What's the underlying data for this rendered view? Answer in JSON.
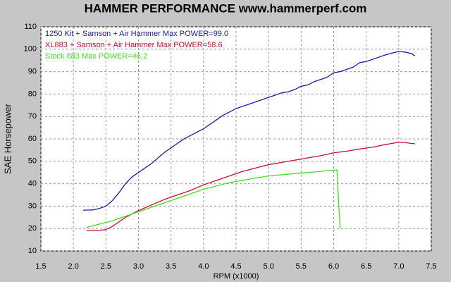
{
  "chart_data": {
    "type": "line",
    "title": "HAMMER PERFORMANCE www.hammerperf.com",
    "xlabel": "RPM (x1000)",
    "ylabel": "SAE Horsepower",
    "xlim": [
      1.5,
      7.5
    ],
    "ylim": [
      10,
      110
    ],
    "xticks": [
      1.5,
      {
        "value": 2,
        "label": "2.0"
      },
      2.5,
      {
        "value": 3,
        "label": "3.0"
      },
      3.5,
      {
        "value": 4,
        "label": "4.0"
      },
      4.5,
      {
        "value": 5,
        "label": "5.0"
      },
      5.5,
      {
        "value": 6,
        "label": "6.0"
      },
      6.5,
      {
        "value": 7,
        "label": "7.0"
      },
      7.5
    ],
    "yticks": [
      10,
      20,
      30,
      40,
      50,
      60,
      70,
      80,
      90,
      100,
      110
    ],
    "grid": true,
    "legend": "upper left",
    "series": [
      {
        "name": "1250 Kit + Samson + Air Hammer  Max POWER=99.0",
        "color": "#1c1ca0",
        "x": [
          2.15,
          2.3,
          2.4,
          2.5,
          2.6,
          2.7,
          2.8,
          2.9,
          3.0,
          3.1,
          3.2,
          3.3,
          3.4,
          3.5,
          3.6,
          3.7,
          3.8,
          3.9,
          4.0,
          4.1,
          4.2,
          4.3,
          4.4,
          4.5,
          4.6,
          4.7,
          4.8,
          4.9,
          5.0,
          5.1,
          5.2,
          5.3,
          5.4,
          5.5,
          5.6,
          5.7,
          5.8,
          5.9,
          6.0,
          6.1,
          6.2,
          6.3,
          6.4,
          6.5,
          6.6,
          6.7,
          6.8,
          6.9,
          7.0,
          7.1,
          7.2,
          7.25
        ],
        "values": [
          28.2,
          28.3,
          29,
          30,
          32.5,
          36,
          40,
          43,
          45,
          47,
          49,
          51.5,
          54,
          56,
          58,
          60,
          61.5,
          63,
          64.5,
          66.5,
          68.5,
          70.5,
          72,
          73.5,
          74.5,
          75.5,
          76.5,
          77.5,
          78.5,
          79.5,
          80.5,
          81,
          82,
          83.5,
          84,
          85.5,
          86.5,
          87.5,
          89.5,
          90,
          91,
          92,
          94,
          94.5,
          95.5,
          96.5,
          97.5,
          98.3,
          99,
          98.7,
          98,
          97
        ]
      },
      {
        "name": "XL883 + Samson + Air Hammer  Max POWER=58.6",
        "color": "#c8102e",
        "x": [
          2.2,
          2.4,
          2.5,
          2.6,
          2.7,
          2.8,
          3.0,
          3.2,
          3.4,
          3.6,
          3.8,
          4.0,
          4.2,
          4.4,
          4.6,
          4.8,
          5.0,
          5.2,
          5.4,
          5.6,
          5.8,
          6.0,
          6.2,
          6.4,
          6.6,
          6.8,
          7.0,
          7.1,
          7.25
        ],
        "values": [
          19,
          19.2,
          19.5,
          21,
          23,
          25,
          28,
          30.5,
          33,
          35,
          37,
          39.5,
          41.5,
          43.5,
          45.5,
          47,
          48.5,
          49.5,
          50.5,
          51.5,
          52.5,
          53.8,
          54.5,
          55.5,
          56.3,
          57.5,
          58.5,
          58.3,
          57.8
        ]
      },
      {
        "name": "Stock 883  Max POWER=46.2",
        "color": "#44dd22",
        "x": [
          2.2,
          2.4,
          2.6,
          2.8,
          3.0,
          3.2,
          3.4,
          3.6,
          3.8,
          4.0,
          4.2,
          4.4,
          4.6,
          4.8,
          5.0,
          5.2,
          5.4,
          5.6,
          5.8,
          5.9,
          6.0,
          6.05,
          6.08,
          6.1
        ],
        "values": [
          20.5,
          22,
          23.5,
          25.5,
          27.5,
          29.5,
          31.5,
          33.5,
          35.5,
          37.5,
          39,
          40.5,
          41.5,
          42.5,
          43.5,
          44,
          44.5,
          45,
          45.5,
          45.8,
          46,
          46.2,
          30,
          20
        ]
      }
    ]
  }
}
